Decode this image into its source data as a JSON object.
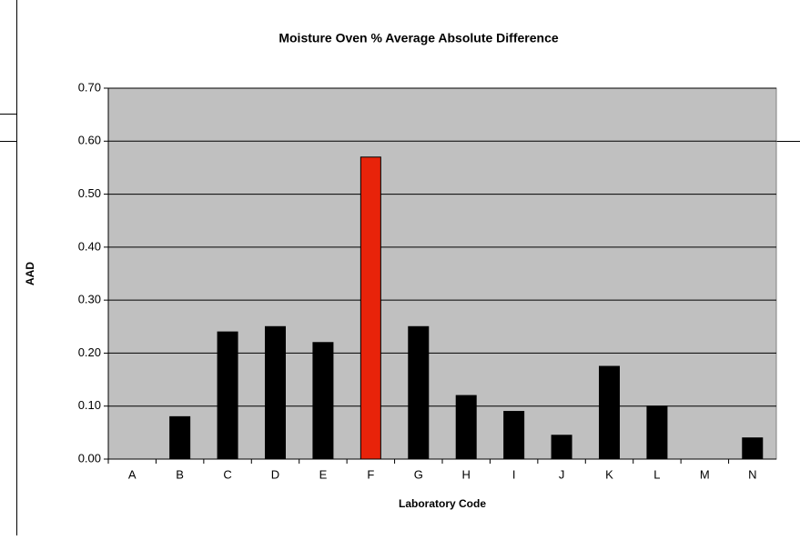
{
  "chart_data": {
    "type": "bar",
    "title": "Moisture Oven % Average Absolute Difference",
    "x_label": "Laboratory Code",
    "y_label": "AAD",
    "categories": [
      "A",
      "B",
      "C",
      "D",
      "E",
      "F",
      "G",
      "H",
      "I",
      "J",
      "K",
      "L",
      "M",
      "N"
    ],
    "values": [
      0,
      0.08,
      0.24,
      0.25,
      0.22,
      0.57,
      0.25,
      0.12,
      0.09,
      0.045,
      0.175,
      0.1,
      0,
      0.04
    ],
    "colors": [
      "#000000",
      "#000000",
      "#000000",
      "#000000",
      "#000000",
      "#e8230a",
      "#000000",
      "#000000",
      "#000000",
      "#000000",
      "#000000",
      "#000000",
      "#000000",
      "#000000"
    ],
    "ylim": [
      0,
      0.7
    ],
    "yticks": [
      {
        "value": 0,
        "label": "0.00"
      },
      {
        "value": 0.1,
        "label": "0.10"
      },
      {
        "value": 0.2,
        "label": "0.20"
      },
      {
        "value": 0.3,
        "label": "0.30"
      },
      {
        "value": 0.4,
        "label": "0.40"
      },
      {
        "value": 0.5,
        "label": "0.50"
      },
      {
        "value": 0.6,
        "label": "0.60"
      },
      {
        "value": 0.7,
        "label": "0.70"
      }
    ],
    "grid": true,
    "plot_background": "#c0c0c0"
  }
}
